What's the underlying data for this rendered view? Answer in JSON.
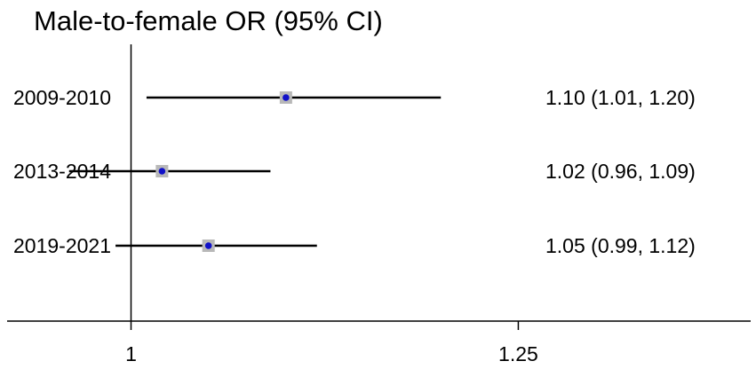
{
  "chart_data": {
    "type": "forest",
    "title": "Male-to-female OR (95% CI)",
    "xlabel": "",
    "ylabel": "",
    "xlim": [
      0.92,
      1.4
    ],
    "reference_line": 1,
    "x_ticks": [
      {
        "value": 1,
        "label": "1"
      },
      {
        "value": 1.25,
        "label": "1.25"
      }
    ],
    "rows": [
      {
        "category": "2009-2010",
        "or": 1.1,
        "ci_low": 1.01,
        "ci_high": 1.2,
        "label": "1.10 (1.01, 1.20)"
      },
      {
        "category": "2013-2014",
        "or": 1.02,
        "ci_low": 0.96,
        "ci_high": 1.09,
        "label": "1.02 (0.96, 1.09)"
      },
      {
        "category": "2019-2021",
        "or": 1.05,
        "ci_low": 0.99,
        "ci_high": 1.12,
        "label": "1.05 (0.99, 1.12)"
      }
    ],
    "grid": false,
    "colors": {
      "point": "#1010c8",
      "box": "#b8b8b8",
      "line": "#000000"
    }
  }
}
